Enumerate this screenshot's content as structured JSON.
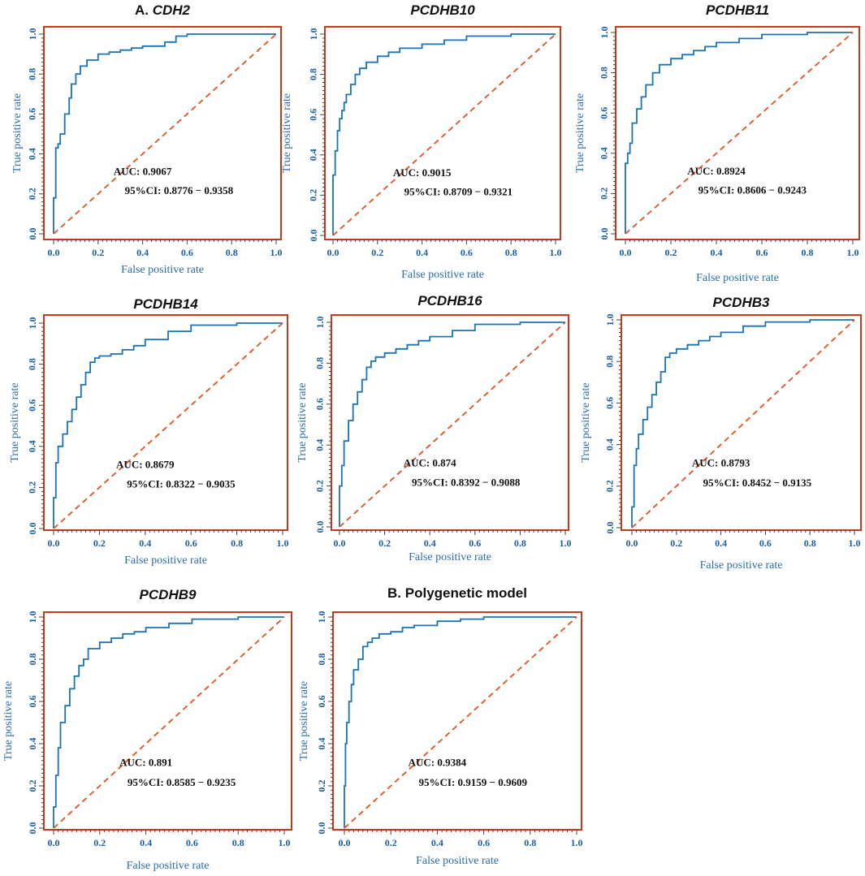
{
  "colors": {
    "curve": "#1a73b5",
    "diagonal": "#e8501c",
    "frame": "#c8391a",
    "axis_text": "#2a6db0"
  },
  "chart_data": [
    {
      "type": "line",
      "title_prefix": "A.",
      "title": "CDH2",
      "title_italic": true,
      "xlabel": "False positive rate",
      "ylabel": "True positive rate",
      "xlim": [
        0,
        1
      ],
      "ylim": [
        0,
        1
      ],
      "xticks": [
        "0.0",
        "0.2",
        "0.4",
        "0.6",
        "0.8",
        "1.0"
      ],
      "yticks": [
        "0.0",
        "0.2",
        "0.4",
        "0.6",
        "0.8",
        "1.0"
      ],
      "auc_label": "AUC: 0.9067",
      "ci_label": "95%CI: 0.8776 − 0.9358",
      "series": [
        {
          "name": "ROC",
          "x": [
            0,
            0.01,
            0.01,
            0.02,
            0.03,
            0.05,
            0.07,
            0.08,
            0.1,
            0.12,
            0.15,
            0.2,
            0.25,
            0.3,
            0.35,
            0.4,
            0.5,
            0.55,
            0.6,
            0.8,
            1.0
          ],
          "y": [
            0,
            0.18,
            0.4,
            0.43,
            0.45,
            0.5,
            0.6,
            0.68,
            0.75,
            0.8,
            0.84,
            0.87,
            0.9,
            0.91,
            0.92,
            0.93,
            0.94,
            0.96,
            0.99,
            1.0,
            1.0
          ]
        },
        {
          "name": "Reference",
          "x": [
            0,
            1
          ],
          "y": [
            0,
            1
          ]
        }
      ]
    },
    {
      "type": "line",
      "title_prefix": "",
      "title": "PCDHB10",
      "title_italic": true,
      "xlabel": "False positive rate",
      "ylabel": "True positive rate",
      "xlim": [
        0,
        1
      ],
      "ylim": [
        0,
        1
      ],
      "xticks": [
        "0.0",
        "0.2",
        "0.4",
        "0.6",
        "0.8",
        "1.0"
      ],
      "yticks": [
        "0.0",
        "0.2",
        "0.4",
        "0.6",
        "0.8",
        "1.0"
      ],
      "auc_label": "AUC: 0.9015",
      "ci_label": "95%CI: 0.8709 − 0.9321",
      "series": [
        {
          "name": "ROC",
          "x": [
            0,
            0.01,
            0.02,
            0.03,
            0.04,
            0.05,
            0.06,
            0.08,
            0.1,
            0.12,
            0.15,
            0.2,
            0.25,
            0.3,
            0.4,
            0.5,
            0.6,
            0.8,
            1.0
          ],
          "y": [
            0,
            0.3,
            0.42,
            0.52,
            0.58,
            0.62,
            0.66,
            0.7,
            0.75,
            0.8,
            0.83,
            0.86,
            0.89,
            0.91,
            0.93,
            0.95,
            0.97,
            0.99,
            1.0
          ]
        },
        {
          "name": "Reference",
          "x": [
            0,
            1
          ],
          "y": [
            0,
            1
          ]
        }
      ]
    },
    {
      "type": "line",
      "title_prefix": "",
      "title": "PCDHB11",
      "title_italic": true,
      "xlabel": "False positive rate",
      "ylabel": "True positive rate",
      "xlim": [
        0,
        1
      ],
      "ylim": [
        0,
        1
      ],
      "xticks": [
        "0.0",
        "0.2",
        "0.4",
        "0.6",
        "0.8",
        "1.0"
      ],
      "yticks": [
        "0.0",
        "0.2",
        "0.4",
        "0.6",
        "0.8",
        "1.0"
      ],
      "auc_label": "AUC: 0.8924",
      "ci_label": "95%CI: 0.8606 − 0.9243",
      "series": [
        {
          "name": "ROC",
          "x": [
            0,
            0.01,
            0.02,
            0.03,
            0.05,
            0.07,
            0.09,
            0.12,
            0.15,
            0.2,
            0.25,
            0.3,
            0.35,
            0.4,
            0.5,
            0.6,
            0.8,
            1.0
          ],
          "y": [
            0,
            0.35,
            0.4,
            0.45,
            0.55,
            0.62,
            0.68,
            0.74,
            0.8,
            0.84,
            0.87,
            0.89,
            0.91,
            0.93,
            0.95,
            0.97,
            0.99,
            1.0
          ]
        },
        {
          "name": "Reference",
          "x": [
            0,
            1
          ],
          "y": [
            0,
            1
          ]
        }
      ]
    },
    {
      "type": "line",
      "title_prefix": "",
      "title": "PCDHB14",
      "title_italic": true,
      "xlabel": "False positive rate",
      "ylabel": "True positive rate",
      "xlim": [
        0,
        1
      ],
      "ylim": [
        0,
        1
      ],
      "xticks": [
        "0.0",
        "0.2",
        "0.4",
        "0.6",
        "0.8",
        "1.0"
      ],
      "yticks": [
        "0.0",
        "0.2",
        "0.4",
        "0.6",
        "0.8",
        "1.0"
      ],
      "auc_label": "AUC: 0.8679",
      "ci_label": "95%CI: 0.8322 − 0.9035",
      "series": [
        {
          "name": "ROC",
          "x": [
            0,
            0.01,
            0.02,
            0.04,
            0.06,
            0.08,
            0.1,
            0.12,
            0.14,
            0.16,
            0.18,
            0.2,
            0.25,
            0.3,
            0.35,
            0.4,
            0.5,
            0.6,
            0.8,
            1.0
          ],
          "y": [
            0,
            0.15,
            0.32,
            0.4,
            0.46,
            0.52,
            0.58,
            0.64,
            0.7,
            0.76,
            0.81,
            0.83,
            0.84,
            0.85,
            0.87,
            0.89,
            0.92,
            0.96,
            0.99,
            1.0
          ]
        },
        {
          "name": "Reference",
          "x": [
            0,
            1
          ],
          "y": [
            0,
            1
          ]
        }
      ]
    },
    {
      "type": "line",
      "title_prefix": "",
      "title": "PCDHB16",
      "title_italic": true,
      "xlabel": "False positive rate",
      "ylabel": "True positive rate",
      "xlim": [
        0,
        1
      ],
      "ylim": [
        0,
        1
      ],
      "xticks": [
        "0.0",
        "0.2",
        "0.4",
        "0.6",
        "0.8",
        "1.0"
      ],
      "yticks": [
        "0.0",
        "0.2",
        "0.4",
        "0.6",
        "0.8",
        "1.0"
      ],
      "auc_label": "AUC: 0.874",
      "ci_label": "95%CI: 0.8392 − 0.9088",
      "series": [
        {
          "name": "ROC",
          "x": [
            0,
            0.01,
            0.02,
            0.04,
            0.06,
            0.08,
            0.1,
            0.12,
            0.14,
            0.16,
            0.2,
            0.25,
            0.3,
            0.35,
            0.4,
            0.5,
            0.6,
            0.8,
            1.0
          ],
          "y": [
            0,
            0.2,
            0.3,
            0.42,
            0.52,
            0.6,
            0.66,
            0.72,
            0.78,
            0.81,
            0.83,
            0.85,
            0.87,
            0.89,
            0.91,
            0.93,
            0.96,
            0.99,
            1.0
          ]
        },
        {
          "name": "Reference",
          "x": [
            0,
            1
          ],
          "y": [
            0,
            1
          ]
        }
      ]
    },
    {
      "type": "line",
      "title_prefix": "",
      "title": "PCDHB3",
      "title_italic": true,
      "xlabel": "False positive rate",
      "ylabel": "True positive rate",
      "xlim": [
        0,
        1
      ],
      "ylim": [
        0,
        1
      ],
      "xticks": [
        "0.0",
        "0.2",
        "0.4",
        "0.6",
        "0.8",
        "1.0"
      ],
      "yticks": [
        "0.0",
        "0.2",
        "0.4",
        "0.6",
        "0.8",
        "1.0"
      ],
      "auc_label": "AUC: 0.8793",
      "ci_label": "95%CI: 0.8452 − 0.9135",
      "series": [
        {
          "name": "ROC",
          "x": [
            0,
            0.01,
            0.02,
            0.03,
            0.05,
            0.07,
            0.09,
            0.11,
            0.13,
            0.15,
            0.17,
            0.2,
            0.25,
            0.3,
            0.35,
            0.4,
            0.5,
            0.6,
            0.8,
            1.0
          ],
          "y": [
            0,
            0.1,
            0.3,
            0.38,
            0.45,
            0.52,
            0.58,
            0.64,
            0.7,
            0.75,
            0.82,
            0.84,
            0.86,
            0.88,
            0.9,
            0.92,
            0.94,
            0.97,
            0.99,
            1.0
          ]
        },
        {
          "name": "Reference",
          "x": [
            0,
            1
          ],
          "y": [
            0,
            1
          ]
        }
      ]
    },
    {
      "type": "line",
      "title_prefix": "",
      "title": "PCDHB9",
      "title_italic": true,
      "xlabel": "False positive rate",
      "ylabel": "True positive rate",
      "xlim": [
        0,
        1
      ],
      "ylim": [
        0,
        1
      ],
      "xticks": [
        "0.0",
        "0.2",
        "0.4",
        "0.6",
        "0.8",
        "1.0"
      ],
      "yticks": [
        "0.0",
        "0.2",
        "0.4",
        "0.6",
        "0.8",
        "1.0"
      ],
      "auc_label": "AUC: 0.891",
      "ci_label": "95%CI: 0.8585 − 0.9235",
      "series": [
        {
          "name": "ROC",
          "x": [
            0,
            0.01,
            0.02,
            0.03,
            0.05,
            0.07,
            0.09,
            0.11,
            0.13,
            0.15,
            0.2,
            0.25,
            0.3,
            0.35,
            0.4,
            0.5,
            0.6,
            0.8,
            1.0
          ],
          "y": [
            0,
            0.1,
            0.25,
            0.38,
            0.5,
            0.58,
            0.66,
            0.72,
            0.77,
            0.8,
            0.85,
            0.88,
            0.9,
            0.92,
            0.93,
            0.95,
            0.97,
            0.99,
            1.0
          ]
        },
        {
          "name": "Reference",
          "x": [
            0,
            1
          ],
          "y": [
            0,
            1
          ]
        }
      ]
    },
    {
      "type": "line",
      "title_prefix": "B.",
      "title": "Polygenetic model",
      "title_italic": false,
      "xlabel": "False positive rate",
      "ylabel": "True positive rate",
      "xlim": [
        0,
        1
      ],
      "ylim": [
        0,
        1
      ],
      "xticks": [
        "0.0",
        "0.2",
        "0.4",
        "0.6",
        "0.8",
        "1.0"
      ],
      "yticks": [
        "0.0",
        "0.2",
        "0.4",
        "0.6",
        "0.8",
        "1.0"
      ],
      "auc_label": "AUC: 0.9384",
      "ci_label": "95%CI: 0.9159 − 0.9609",
      "series": [
        {
          "name": "ROC",
          "x": [
            0,
            0.005,
            0.01,
            0.02,
            0.03,
            0.04,
            0.06,
            0.08,
            0.1,
            0.12,
            0.15,
            0.2,
            0.25,
            0.3,
            0.4,
            0.5,
            0.6,
            0.8,
            1.0
          ],
          "y": [
            0,
            0.2,
            0.4,
            0.5,
            0.6,
            0.68,
            0.75,
            0.8,
            0.86,
            0.88,
            0.9,
            0.92,
            0.93,
            0.95,
            0.96,
            0.98,
            0.99,
            1.0,
            1.0
          ]
        },
        {
          "name": "Reference",
          "x": [
            0,
            1
          ],
          "y": [
            0,
            1
          ]
        }
      ]
    }
  ]
}
